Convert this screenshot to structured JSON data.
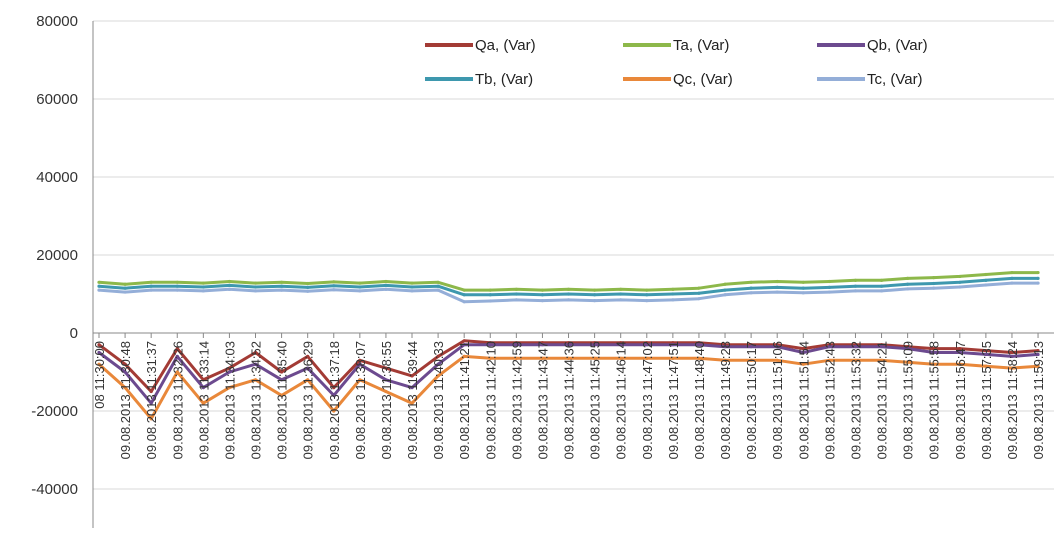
{
  "chart_data": {
    "type": "line",
    "title": "",
    "xlabel": "",
    "ylabel": "",
    "ylim": [
      -50000,
      80000
    ],
    "yticks": [
      80000,
      60000,
      40000,
      20000,
      0,
      -20000,
      -40000
    ],
    "ytick_labels": [
      "80000",
      "60000",
      "40000",
      "20000",
      "0",
      "-20000",
      "-40000"
    ],
    "grid": "horizontal",
    "legend_position": "top-right",
    "x_labels": [
      "08 11:30:00",
      "09.08.2013 11:30:48",
      "09.08.2013 11:31:37",
      "09.08.2013 11:32:26",
      "09.08.2013 11:33:14",
      "09.08.2013 11:34:03",
      "09.08.2013 11:34:52",
      "09.08.2013 11:35:40",
      "09.08.2013 11:36:29",
      "09.08.2013 11:37:18",
      "09.08.2013 11:38:07",
      "09.08.2013 11:38:55",
      "09.08.2013 11:39:44",
      "09.08.2013 11:40:33",
      "09.08.2013 11:41:21",
      "09.08.2013 11:42:10",
      "09.08.2013 11:42:59",
      "09.08.2013 11:43:47",
      "09.08.2013 11:44:36",
      "09.08.2013 11:45:25",
      "09.08.2013 11:46:14",
      "09.08.2013 11:47:02",
      "09.08.2013 11:47:51",
      "09.08.2013 11:48:40",
      "09.08.2013 11:49:28",
      "09.08.2013 11:50:17",
      "09.08.2013 11:51:06",
      "09.08.2013 11:51:54",
      "09.08.2013 11:52:43",
      "09.08.2013 11:53:32",
      "09.08.2013 11:54:21",
      "09.08.2013 11:55:09",
      "09.08.2013 11:55:58",
      "09.08.2013 11:56:47",
      "09.08.2013 11:57:35",
      "09.08.2013 11:58:24",
      "09.08.2013 11:59:13"
    ],
    "series": [
      {
        "name": "Qa, (Var)",
        "color": "#a33b35",
        "values": [
          -3000,
          -8000,
          -15000,
          -4000,
          -12000,
          -9000,
          -5000,
          -10000,
          -6000,
          -14000,
          -7000,
          -9000,
          -11000,
          -6000,
          -2000,
          -2500,
          -2500,
          -2500,
          -2500,
          -2500,
          -2500,
          -2500,
          -2500,
          -2500,
          -3000,
          -3000,
          -3000,
          -4000,
          -3000,
          -3000,
          -3000,
          -3500,
          -4000,
          -4000,
          -4500,
          -5000,
          -4500
        ]
      },
      {
        "name": "Ta, (Var)",
        "color": "#8db84a",
        "values": [
          13000,
          12500,
          13000,
          13000,
          12800,
          13200,
          12800,
          13000,
          12700,
          13100,
          12800,
          13200,
          12800,
          13000,
          11000,
          11000,
          11200,
          11000,
          11200,
          11000,
          11200,
          11000,
          11200,
          11500,
          12500,
          13000,
          13200,
          13000,
          13200,
          13500,
          13500,
          14000,
          14200,
          14500,
          15000,
          15500,
          15500
        ]
      },
      {
        "name": "Qb, (Var)",
        "color": "#6c4a8f",
        "values": [
          -5000,
          -10000,
          -18000,
          -6000,
          -14000,
          -10000,
          -8000,
          -12000,
          -9000,
          -16000,
          -8000,
          -12000,
          -14000,
          -8000,
          -3000,
          -3000,
          -3000,
          -3000,
          -3000,
          -3000,
          -3000,
          -3000,
          -3000,
          -3000,
          -3500,
          -3500,
          -3500,
          -5000,
          -3500,
          -3500,
          -3500,
          -4000,
          -5000,
          -5000,
          -5500,
          -6000,
          -5500
        ]
      },
      {
        "name": "Tb, (Var)",
        "color": "#3e98ae",
        "values": [
          12000,
          11500,
          12000,
          12000,
          11800,
          12200,
          11800,
          12000,
          11700,
          12100,
          11800,
          12200,
          11800,
          12000,
          9800,
          9800,
          10000,
          9800,
          10000,
          9800,
          10000,
          9800,
          10000,
          10200,
          11000,
          11500,
          11700,
          11500,
          11700,
          12000,
          12000,
          12500,
          12700,
          13000,
          13500,
          14000,
          14000
        ]
      },
      {
        "name": "Qc, (Var)",
        "color": "#e9883a",
        "values": [
          -8000,
          -14000,
          -22000,
          -10000,
          -18000,
          -14000,
          -12000,
          -16000,
          -12000,
          -20000,
          -12000,
          -15000,
          -18000,
          -11000,
          -6000,
          -6500,
          -6500,
          -6500,
          -6500,
          -6500,
          -6500,
          -6500,
          -6500,
          -6500,
          -7000,
          -7000,
          -7000,
          -8000,
          -7000,
          -7000,
          -7000,
          -7500,
          -8000,
          -8000,
          -8500,
          -9000,
          -8500
        ]
      },
      {
        "name": "Tc, (Var)",
        "color": "#94aed8",
        "values": [
          11000,
          10500,
          11000,
          11000,
          10800,
          11200,
          10800,
          11000,
          10700,
          11100,
          10800,
          11200,
          10800,
          11000,
          8000,
          8200,
          8500,
          8300,
          8500,
          8300,
          8500,
          8300,
          8500,
          8800,
          9800,
          10300,
          10500,
          10300,
          10500,
          10800,
          10800,
          11300,
          11500,
          11800,
          12300,
          12800,
          12800
        ]
      }
    ]
  }
}
